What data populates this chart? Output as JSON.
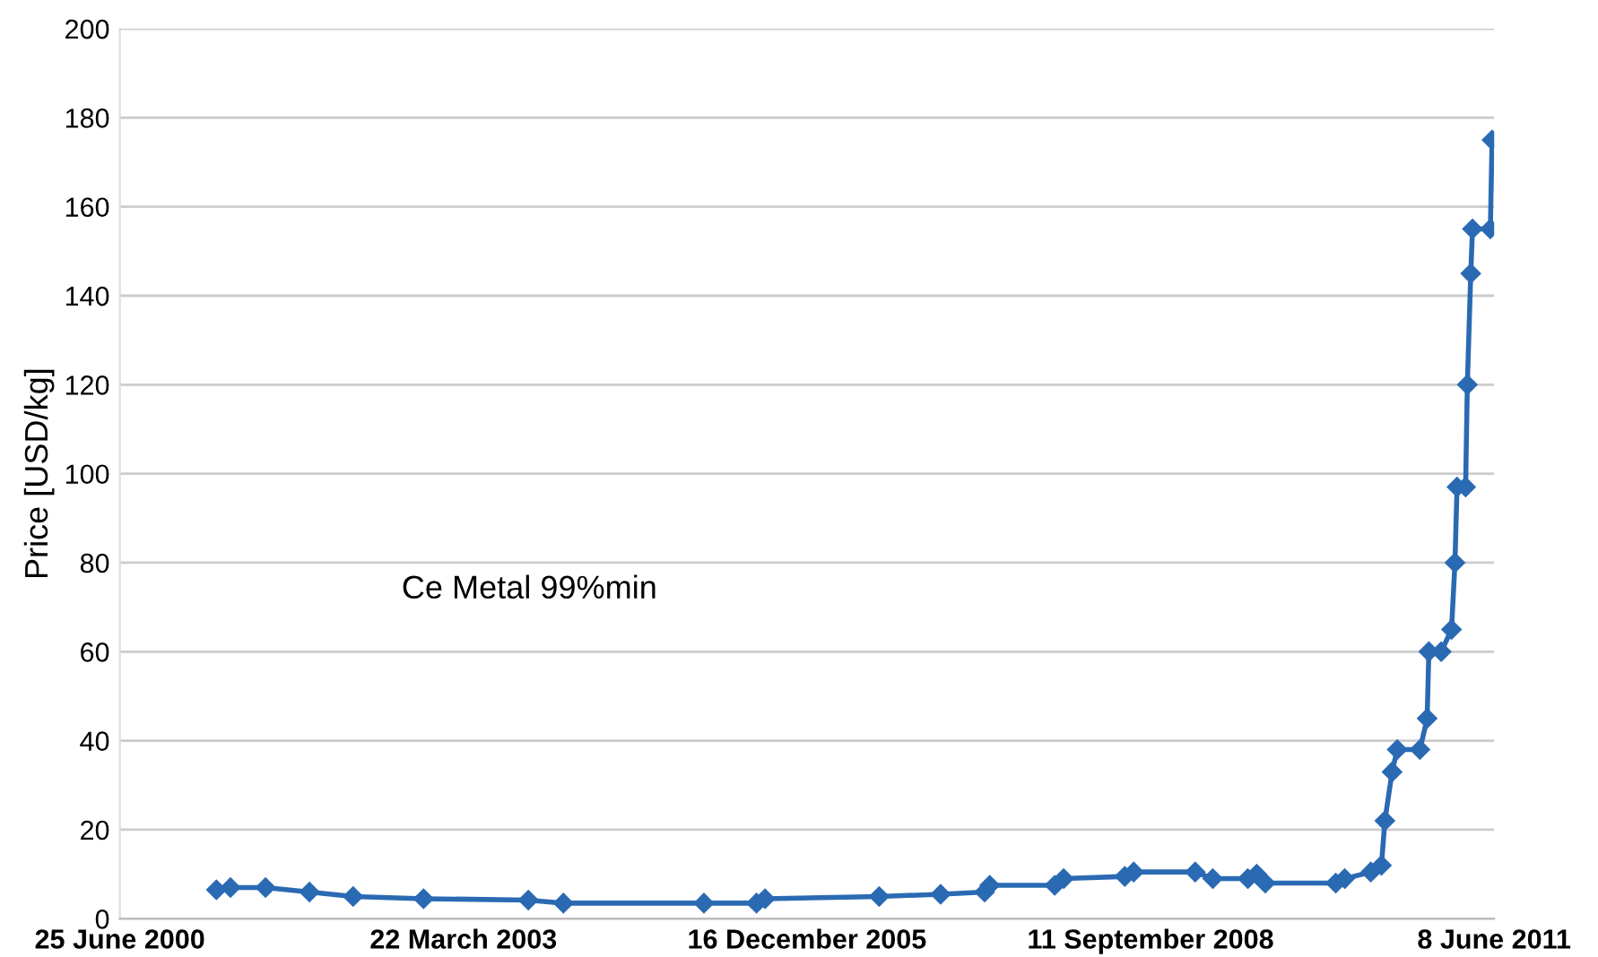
{
  "chart_data": {
    "type": "line",
    "ylabel": "Price [USD/kg]",
    "annotations": [
      "Ce Metal 99%min"
    ],
    "x": [
      "2001-04-02",
      "2001-05-13",
      "2001-08-23",
      "2001-12-29",
      "2002-05-05",
      "2002-11-26",
      "2003-09-27",
      "2004-01-07",
      "2005-02-19",
      "2005-07-22",
      "2005-08-16",
      "2006-07-14",
      "2007-01-09",
      "2007-05-17",
      "2007-06-01",
      "2007-12-07",
      "2008-01-02",
      "2008-06-28",
      "2008-07-24",
      "2009-01-19",
      "2009-03-11",
      "2009-06-21",
      "2009-07-17",
      "2009-08-11",
      "2010-03-04",
      "2010-03-30",
      "2010-06-14",
      "2010-07-15",
      "2010-07-25",
      "2010-08-15",
      "2010-08-30",
      "2010-11-04",
      "2010-11-25",
      "2010-11-30",
      "2011-01-05",
      "2011-02-04",
      "2011-02-14",
      "2011-02-20",
      "2011-03-17",
      "2011-03-22",
      "2011-04-01",
      "2011-04-06",
      "2011-05-28",
      "2011-06-02"
    ],
    "series": [
      {
        "color": "#2a6ab3",
        "values": [
          6.5,
          7,
          7,
          6,
          5,
          4.5,
          4.2,
          3.5,
          3.5,
          3.5,
          4.5,
          5,
          5.5,
          6,
          7.5,
          7.5,
          9,
          9.5,
          10.5,
          10.5,
          9,
          9,
          10,
          8,
          8,
          9,
          10.5,
          12,
          22,
          33,
          38,
          38,
          45,
          60,
          60,
          65,
          80,
          97,
          97,
          120,
          145,
          155,
          155,
          175
        ]
      }
    ],
    "xlim": [
      "2000-06-25",
      "2011-06-08"
    ],
    "xticks": [
      {
        "value": "2000-06-25",
        "label": "25 June 2000"
      },
      {
        "value": "2003-03-22",
        "label": "22 March 2003"
      },
      {
        "value": "2005-12-16",
        "label": "16 December 2005"
      },
      {
        "value": "2008-09-11",
        "label": "11 September 2008"
      },
      {
        "value": "2011-06-08",
        "label": "8 June 2011"
      }
    ],
    "ylim": [
      0,
      200
    ],
    "yticks": [
      0,
      20,
      40,
      60,
      80,
      100,
      120,
      140,
      160,
      180,
      200
    ],
    "grid": "y",
    "legend": false,
    "marker": "diamond",
    "line_style": "solid"
  }
}
